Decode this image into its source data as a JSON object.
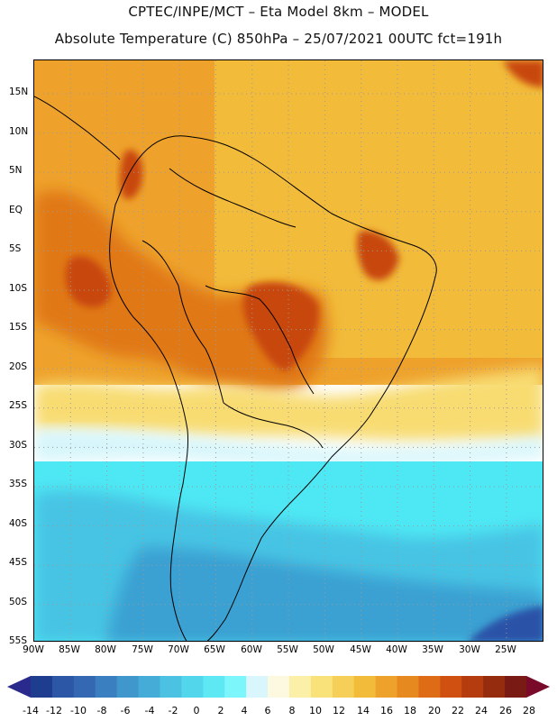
{
  "header": {
    "line1": "CPTEC/INPE/MCT –  Eta Model 8km – MODEL",
    "line2": "Absolute Temperature (C) 850hPa – 25/07/2021 00UTC fct=191h"
  },
  "map": {
    "lat_labels": [
      "15N",
      "10N",
      "5N",
      "EQ",
      "5S",
      "10S",
      "15S",
      "20S",
      "25S",
      "30S",
      "35S",
      "40S",
      "45S",
      "50S",
      "55S"
    ],
    "lon_labels": [
      "90W",
      "85W",
      "80W",
      "75W",
      "70W",
      "65W",
      "60W",
      "55W",
      "50W",
      "45W",
      "40W",
      "35W",
      "30W",
      "25W"
    ],
    "field": "Absolute Temperature (C) at 850hPa",
    "colors": {
      "hot_dark": "#c8460f",
      "hot": "#e07818",
      "warm": "#eea22c",
      "warm_light": "#f2bb3a",
      "mild": "#f8dc72",
      "cool": "#d6f6fb",
      "cold_cyan": "#4ee8f4",
      "cold": "#46c4e4",
      "colder": "#3aa0d2",
      "coldest": "#2a52a8",
      "border": "#000000",
      "grid": "#9a9a9a"
    }
  },
  "colorbar": {
    "ticks": [
      "-14",
      "-12",
      "-10",
      "-8",
      "-6",
      "-4",
      "-2",
      "0",
      "2",
      "4",
      "6",
      "8",
      "10",
      "12",
      "14",
      "16",
      "18",
      "20",
      "22",
      "24",
      "26",
      "28"
    ],
    "low_color": "#2a2a8c",
    "high_color": "#7a0a2a",
    "colors": [
      "#1f3d8f",
      "#2c56a6",
      "#3468b2",
      "#3a7fbf",
      "#3f97cc",
      "#45acd8",
      "#4bc2e2",
      "#52d6ec",
      "#5de8f4",
      "#7cf6fa",
      "#d8f6fb",
      "#fdf8e0",
      "#fcf0a8",
      "#fae27a",
      "#f6cf58",
      "#f2bb3a",
      "#eea22c",
      "#e68a20",
      "#de6c16",
      "#cf5010",
      "#b43c0e",
      "#962c0e",
      "#7a1a14"
    ]
  }
}
